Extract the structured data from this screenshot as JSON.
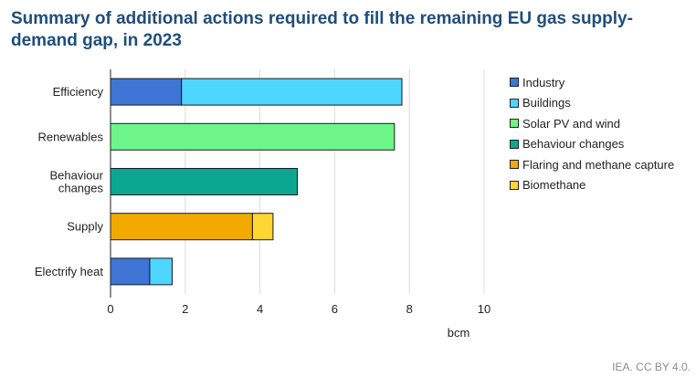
{
  "chart_data": {
    "type": "bar",
    "orientation": "horizontal",
    "stacked": true,
    "title": "Summary of additional actions required to fill the remaining EU gas supply-demand gap, in 2023",
    "xlabel": "bcm",
    "ylabel": "",
    "xlim": [
      0,
      10
    ],
    "xticks": [
      0,
      2,
      4,
      6,
      8,
      10
    ],
    "grid": "vertical",
    "legend_position": "right",
    "categories": [
      "Efficiency",
      "Renewables",
      "Behaviour changes",
      "Supply",
      "Electrify heat"
    ],
    "category_labels": [
      [
        "Efficiency"
      ],
      [
        "Renewables"
      ],
      [
        "Behaviour",
        "changes"
      ],
      [
        "Supply"
      ],
      [
        "Electrify heat"
      ]
    ],
    "series": [
      {
        "name": "Industry",
        "color": "#3f75d4",
        "values": [
          1.9,
          0,
          0,
          0,
          1.05
        ]
      },
      {
        "name": "Buildings",
        "color": "#4dd6ff",
        "values": [
          5.9,
          0,
          0,
          0,
          0.6
        ]
      },
      {
        "name": "Solar PV and wind",
        "color": "#6ef58a",
        "values": [
          0,
          7.6,
          0,
          0,
          0
        ]
      },
      {
        "name": "Behaviour changes",
        "color": "#0aa891",
        "values": [
          0,
          0,
          5.0,
          0,
          0
        ]
      },
      {
        "name": "Flaring and methane capture",
        "color": "#f2a900",
        "values": [
          0,
          0,
          0,
          3.8,
          0
        ]
      },
      {
        "name": "Biomethane",
        "color": "#ffd633",
        "values": [
          0,
          0,
          0,
          0.55,
          0
        ]
      }
    ]
  },
  "source": "IEA. CC BY 4.0."
}
